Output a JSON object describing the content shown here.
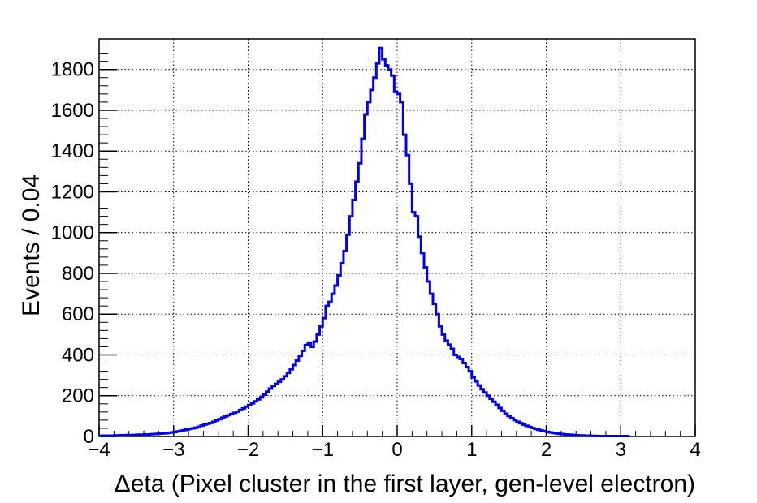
{
  "chart_data": {
    "type": "histogram",
    "xlabel": "Δeta (Pixel cluster in the first layer, gen-level electron)",
    "ylabel": "Events / 0.04",
    "xlim": [
      -4,
      4
    ],
    "ylim": [
      0,
      1950
    ],
    "bin_width": 0.04,
    "x_ticks": [
      -4,
      -3,
      -2,
      -1,
      0,
      1,
      2,
      3,
      4
    ],
    "x_tick_labels": [
      "−4",
      "−3",
      "−2",
      "−1",
      "0",
      "1",
      "2",
      "3",
      "4"
    ],
    "y_ticks": [
      0,
      200,
      400,
      600,
      800,
      1000,
      1200,
      1400,
      1600,
      1800
    ],
    "y_tick_labels": [
      "0",
      "200",
      "400",
      "600",
      "800",
      "1000",
      "1200",
      "1400",
      "1600",
      "1800"
    ],
    "grid": true,
    "line_color": "#0000ee",
    "series": [
      {
        "values": [
          3,
          4,
          3,
          4,
          3,
          5,
          5,
          6,
          6,
          7,
          6,
          7,
          8,
          9,
          9,
          10,
          10,
          11,
          12,
          13,
          14,
          15,
          16,
          18,
          20,
          22,
          25,
          28,
          31,
          34,
          37,
          40,
          43,
          48,
          53,
          58,
          62,
          66,
          72,
          78,
          85,
          92,
          98,
          104,
          110,
          116,
          122,
          130,
          138,
          146,
          154,
          162,
          172,
          182,
          192,
          205,
          220,
          235,
          248,
          258,
          268,
          280,
          295,
          312,
          330,
          350,
          372,
          395,
          420,
          448,
          460,
          440,
          465,
          500,
          540,
          580,
          640,
          660,
          700,
          740,
          790,
          850,
          910,
          990,
          1080,
          1160,
          1250,
          1340,
          1460,
          1580,
          1640,
          1700,
          1760,
          1830,
          1905,
          1850,
          1820,
          1800,
          1770,
          1690,
          1680,
          1640,
          1480,
          1380,
          1240,
          1100,
          1080,
          980,
          900,
          830,
          760,
          700,
          650,
          600,
          540,
          500,
          470,
          450,
          430,
          400,
          390,
          380,
          360,
          340,
          320,
          290,
          270,
          250,
          232,
          216,
          200,
          185,
          170,
          155,
          140,
          126,
          112,
          100,
          90,
          80,
          72,
          65,
          58,
          52,
          47,
          42,
          37,
          33,
          29,
          26,
          23,
          20,
          17,
          15,
          13,
          12,
          10,
          9,
          8,
          7,
          6,
          5,
          5,
          4,
          4,
          3,
          3,
          2,
          2,
          2,
          2,
          2,
          2,
          2,
          2,
          2,
          2,
          2
        ]
      }
    ]
  }
}
